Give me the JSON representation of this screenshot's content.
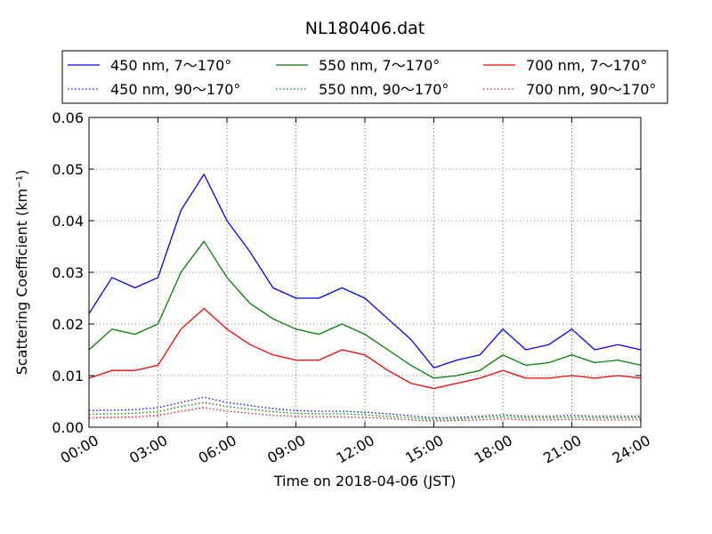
{
  "chart_data": {
    "type": "line",
    "title": "NL180406.dat",
    "xlabel": "Time on 2018-04-06 (JST)",
    "ylabel": "Scattering Coefficient (km⁻¹)",
    "xlim": [
      "00:00",
      "24:00"
    ],
    "ylim": [
      0,
      0.06
    ],
    "grid": true,
    "legend_position": "top",
    "x_tick_labels": [
      "00:00",
      "03:00",
      "06:00",
      "09:00",
      "12:00",
      "15:00",
      "18:00",
      "21:00",
      "24:00"
    ],
    "y_tick_labels": [
      "0.00",
      "0.01",
      "0.02",
      "0.03",
      "0.04",
      "0.05",
      "0.06"
    ],
    "x": [
      "00:00",
      "01:00",
      "02:00",
      "03:00",
      "04:00",
      "05:00",
      "06:00",
      "07:00",
      "08:00",
      "09:00",
      "10:00",
      "11:00",
      "12:00",
      "13:00",
      "14:00",
      "15:00",
      "16:00",
      "17:00",
      "18:00",
      "19:00",
      "20:00",
      "21:00",
      "22:00",
      "23:00",
      "24:00"
    ],
    "series": [
      {
        "name": "450 nm, 7～170°",
        "color": "#0000ff",
        "dash": "solid",
        "values": [
          0.022,
          0.029,
          0.027,
          0.029,
          0.042,
          0.049,
          0.04,
          0.034,
          0.027,
          0.025,
          0.025,
          0.027,
          0.025,
          0.021,
          0.017,
          0.0115,
          0.013,
          0.014,
          0.019,
          0.015,
          0.016,
          0.019,
          0.015,
          0.016,
          0.015
        ]
      },
      {
        "name": "450 nm, 90～170°",
        "color": "#0000ff",
        "dash": "dotted",
        "values": [
          0.0032,
          0.0033,
          0.0034,
          0.0038,
          0.0048,
          0.0058,
          0.0048,
          0.0042,
          0.0036,
          0.0032,
          0.0031,
          0.0031,
          0.0029,
          0.0026,
          0.0022,
          0.0018,
          0.0019,
          0.0021,
          0.0024,
          0.0021,
          0.0021,
          0.0023,
          0.0021,
          0.0021,
          0.0021
        ]
      },
      {
        "name": "550 nm, 7～170°",
        "color": "#008000",
        "dash": "solid",
        "values": [
          0.015,
          0.019,
          0.018,
          0.02,
          0.03,
          0.036,
          0.029,
          0.024,
          0.021,
          0.019,
          0.018,
          0.02,
          0.018,
          0.015,
          0.012,
          0.0095,
          0.01,
          0.011,
          0.014,
          0.012,
          0.0125,
          0.014,
          0.0125,
          0.013,
          0.012
        ]
      },
      {
        "name": "550 nm, 90～170°",
        "color": "#008000",
        "dash": "dotted",
        "values": [
          0.0025,
          0.0026,
          0.0027,
          0.003,
          0.004,
          0.0048,
          0.004,
          0.0035,
          0.003,
          0.0027,
          0.0026,
          0.0026,
          0.0024,
          0.0021,
          0.0018,
          0.0015,
          0.0016,
          0.0018,
          0.002,
          0.0018,
          0.0018,
          0.0019,
          0.0018,
          0.0018,
          0.0018
        ]
      },
      {
        "name": "700 nm, 7～170°",
        "color": "#ff0000",
        "dash": "solid",
        "values": [
          0.0095,
          0.011,
          0.011,
          0.012,
          0.019,
          0.023,
          0.019,
          0.016,
          0.014,
          0.013,
          0.013,
          0.015,
          0.014,
          0.011,
          0.0085,
          0.0075,
          0.0085,
          0.0095,
          0.011,
          0.0095,
          0.0095,
          0.01,
          0.0095,
          0.01,
          0.0095
        ]
      },
      {
        "name": "700 nm, 90～170°",
        "color": "#ff0000",
        "dash": "dotted",
        "values": [
          0.0018,
          0.0019,
          0.002,
          0.0023,
          0.0031,
          0.0038,
          0.0031,
          0.0027,
          0.0023,
          0.0021,
          0.002,
          0.002,
          0.0019,
          0.0017,
          0.0014,
          0.0012,
          0.0013,
          0.0014,
          0.0016,
          0.0014,
          0.0014,
          0.0015,
          0.0014,
          0.0014,
          0.0014
        ]
      }
    ]
  }
}
